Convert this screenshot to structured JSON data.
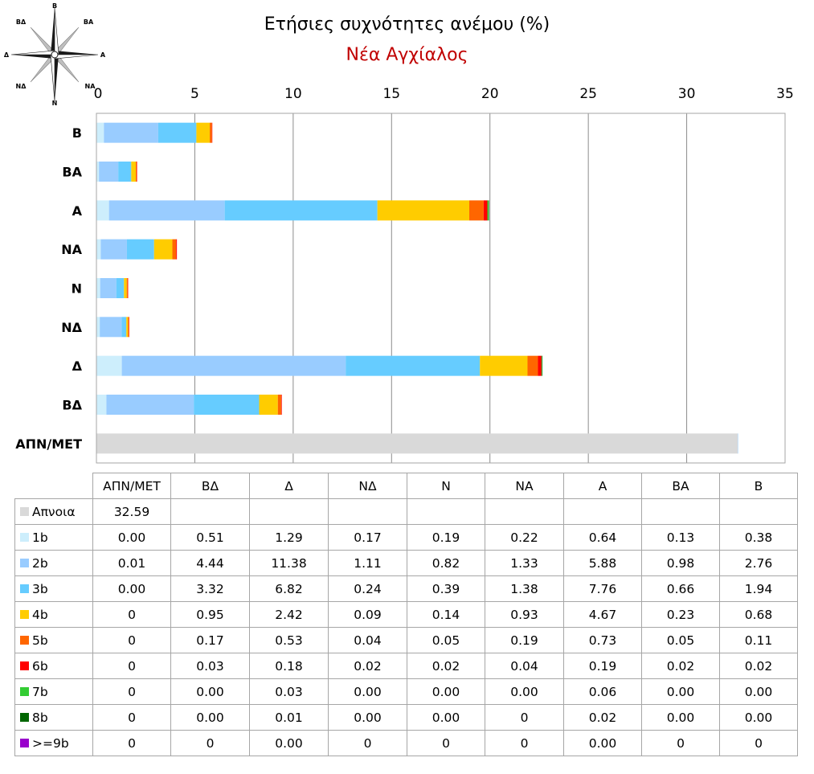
{
  "chart_data": {
    "type": "bar",
    "orientation": "horizontal",
    "stacked": true,
    "title": "Ετήσιες συχνότητες ανέμου (%)",
    "subtitle": "Νέα Αγχίαλος",
    "xlim": [
      0,
      35
    ],
    "xticks": [
      "0",
      "5",
      "10",
      "15",
      "20",
      "25",
      "30",
      "35"
    ],
    "grid": "vertical",
    "legend_placement": "table-below",
    "categories": [
      "Β",
      "ΒΑ",
      "Α",
      "ΝΑ",
      "Ν",
      "ΝΔ",
      "Δ",
      "ΒΔ",
      "ΑΠΝ/ΜΕΤ"
    ],
    "table_columns": [
      "ΑΠΝ/ΜΕΤ",
      "ΒΔ",
      "Δ",
      "ΝΔ",
      "Ν",
      "ΝΑ",
      "Α",
      "ΒΑ",
      "Β"
    ],
    "series": [
      {
        "name": "Απνοια",
        "color": "#d9d9d9",
        "values": [
          null,
          null,
          null,
          null,
          null,
          null,
          null,
          null,
          32.59
        ],
        "cells": [
          "32.59",
          "",
          "",
          "",
          "",
          "",
          "",
          "",
          ""
        ]
      },
      {
        "name": "1b",
        "color": "#cdeefc",
        "values": [
          0.38,
          0.13,
          0.64,
          0.22,
          0.19,
          0.17,
          1.29,
          0.51,
          0.0
        ],
        "cells": [
          "0.00",
          "0.51",
          "1.29",
          "0.17",
          "0.19",
          "0.22",
          "0.64",
          "0.13",
          "0.38"
        ]
      },
      {
        "name": "2b",
        "color": "#99ccff",
        "values": [
          2.76,
          0.98,
          5.88,
          1.33,
          0.82,
          1.11,
          11.38,
          4.44,
          0.01
        ],
        "cells": [
          "0.01",
          "4.44",
          "11.38",
          "1.11",
          "0.82",
          "1.33",
          "5.88",
          "0.98",
          "2.76"
        ]
      },
      {
        "name": "3b",
        "color": "#66ccff",
        "values": [
          1.94,
          0.66,
          7.76,
          1.38,
          0.39,
          0.24,
          6.82,
          3.32,
          0.0
        ],
        "cells": [
          "0.00",
          "3.32",
          "6.82",
          "0.24",
          "0.39",
          "1.38",
          "7.76",
          "0.66",
          "1.94"
        ]
      },
      {
        "name": "4b",
        "color": "#ffcc00",
        "values": [
          0.68,
          0.23,
          4.67,
          0.93,
          0.14,
          0.09,
          2.42,
          0.95,
          0
        ],
        "cells": [
          "0",
          "0.95",
          "2.42",
          "0.09",
          "0.14",
          "0.93",
          "4.67",
          "0.23",
          "0.68"
        ]
      },
      {
        "name": "5b",
        "color": "#ff6600",
        "values": [
          0.11,
          0.05,
          0.73,
          0.19,
          0.05,
          0.04,
          0.53,
          0.17,
          0
        ],
        "cells": [
          "0",
          "0.17",
          "0.53",
          "0.04",
          "0.05",
          "0.19",
          "0.73",
          "0.05",
          "0.11"
        ]
      },
      {
        "name": "6b",
        "color": "#ff0000",
        "values": [
          0.02,
          0.02,
          0.19,
          0.04,
          0.02,
          0.02,
          0.18,
          0.03,
          0
        ],
        "cells": [
          "0",
          "0.03",
          "0.18",
          "0.02",
          "0.02",
          "0.04",
          "0.19",
          "0.02",
          "0.02"
        ]
      },
      {
        "name": "7b",
        "color": "#33cc33",
        "values": [
          0.0,
          0.0,
          0.06,
          0.0,
          0.0,
          0.0,
          0.03,
          0.0,
          0
        ],
        "cells": [
          "0",
          "0.00",
          "0.03",
          "0.00",
          "0.00",
          "0.00",
          "0.06",
          "0.00",
          "0.00"
        ]
      },
      {
        "name": "8b",
        "color": "#006600",
        "values": [
          0.0,
          0.0,
          0.02,
          0,
          0.0,
          0.0,
          0.01,
          0.0,
          0
        ],
        "cells": [
          "0",
          "0.00",
          "0.01",
          "0.00",
          "0.00",
          "0",
          "0.02",
          "0.00",
          "0.00"
        ]
      },
      {
        "name": ">=9b",
        "color": "#9900cc",
        "values": [
          0,
          0,
          0.0,
          0,
          0,
          0,
          0.0,
          0,
          0
        ],
        "cells": [
          "0",
          "0",
          "0.00",
          "0",
          "0",
          "0",
          "0.00",
          "0",
          "0"
        ]
      }
    ]
  },
  "compass": {
    "icon": "compass-rose-icon",
    "labels": {
      "n": "Β",
      "ne": "ΒΑ",
      "e": "Α",
      "se": "ΝΑ",
      "s": "Ν",
      "sw": "ΝΔ",
      "w": "Δ",
      "nw": "ΒΔ"
    }
  }
}
